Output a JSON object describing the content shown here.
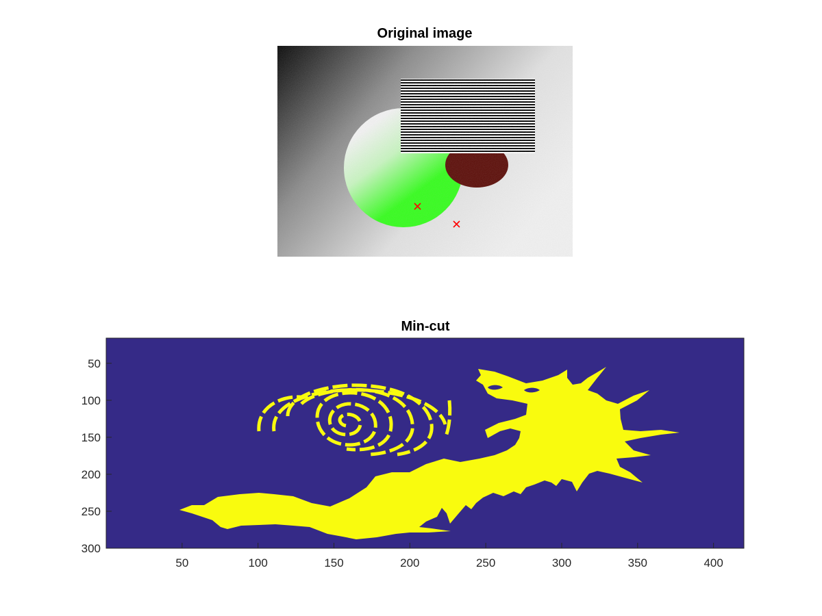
{
  "figure": {
    "top_panel": {
      "title": "Original image",
      "markers": [
        {
          "symbol": "x",
          "color": "#ff0000"
        },
        {
          "symbol": "x",
          "color": "#ff0000"
        }
      ]
    },
    "bottom_panel": {
      "title": "Min-cut",
      "background_color": "#352a87",
      "foreground_color": "#f9fb0e",
      "x_ticks": [
        "50",
        "100",
        "150",
        "200",
        "250",
        "300",
        "350",
        "400"
      ],
      "y_ticks": [
        "50",
        "100",
        "150",
        "200",
        "250",
        "300"
      ],
      "xlim": [
        0,
        420
      ],
      "ylim": [
        16,
        300
      ]
    }
  },
  "colors": {
    "circle_green": "#33ff1a",
    "circle_dark_red": "#5a0a05",
    "stripe_dark": "#000000",
    "stripe_light": "#ffffff"
  }
}
